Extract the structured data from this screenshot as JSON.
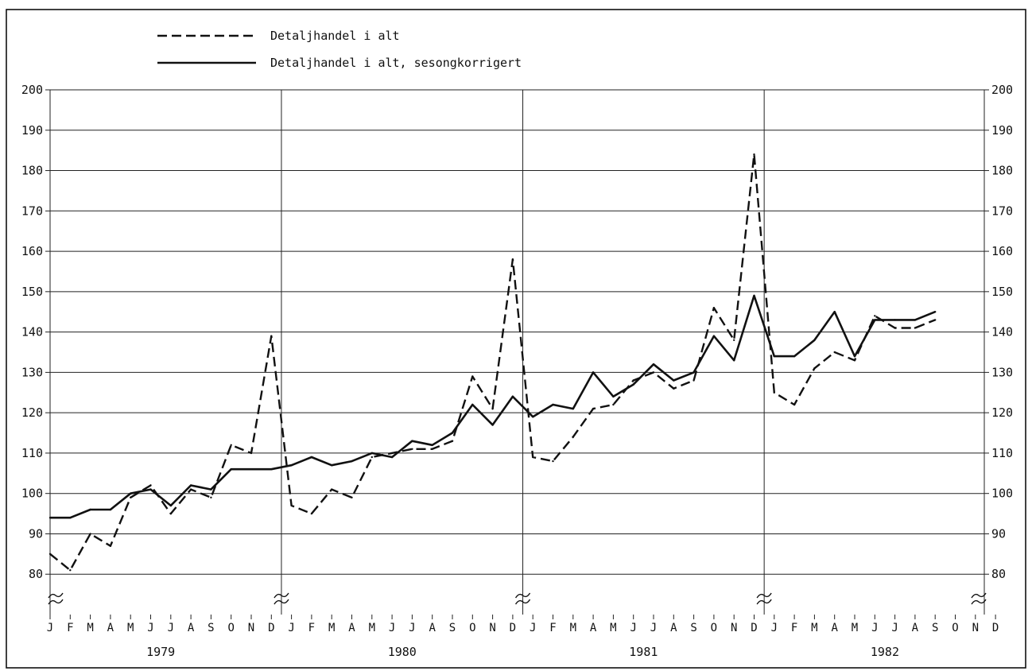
{
  "chart_data": {
    "type": "line",
    "title": "",
    "xlabel": "",
    "ylabel": "",
    "ylim": [
      70,
      200
    ],
    "yticks": [
      80,
      90,
      100,
      110,
      120,
      130,
      140,
      150,
      160,
      170,
      180,
      190,
      200
    ],
    "grid": true,
    "legend_position": "top-left",
    "years": [
      "1979",
      "1980",
      "1981",
      "1982"
    ],
    "month_labels": [
      "J",
      "F",
      "M",
      "A",
      "M",
      "J",
      "J",
      "A",
      "S",
      "O",
      "N",
      "D"
    ],
    "series": [
      {
        "name": "Detaljhandel i alt",
        "style": "dashed",
        "values": [
          85,
          81,
          90,
          87,
          99,
          102,
          95,
          101,
          99,
          112,
          110,
          139,
          97,
          95,
          101,
          99,
          109,
          110,
          111,
          111,
          113,
          129,
          121,
          158,
          109,
          108,
          114,
          121,
          122,
          128,
          130,
          126,
          128,
          146,
          138,
          184,
          125,
          122,
          131,
          135,
          133,
          144,
          141,
          141,
          143
        ]
      },
      {
        "name": "Detaljhandel i alt, sesongkorrigert",
        "style": "solid",
        "values": [
          94,
          94,
          96,
          96,
          100,
          101,
          97,
          102,
          101,
          106,
          106,
          106,
          107,
          109,
          107,
          108,
          110,
          109,
          113,
          112,
          115,
          122,
          117,
          124,
          119,
          122,
          121,
          130,
          124,
          127,
          132,
          128,
          130,
          139,
          133,
          149,
          134,
          134,
          138,
          145,
          134,
          143,
          143,
          143,
          145
        ]
      }
    ]
  }
}
